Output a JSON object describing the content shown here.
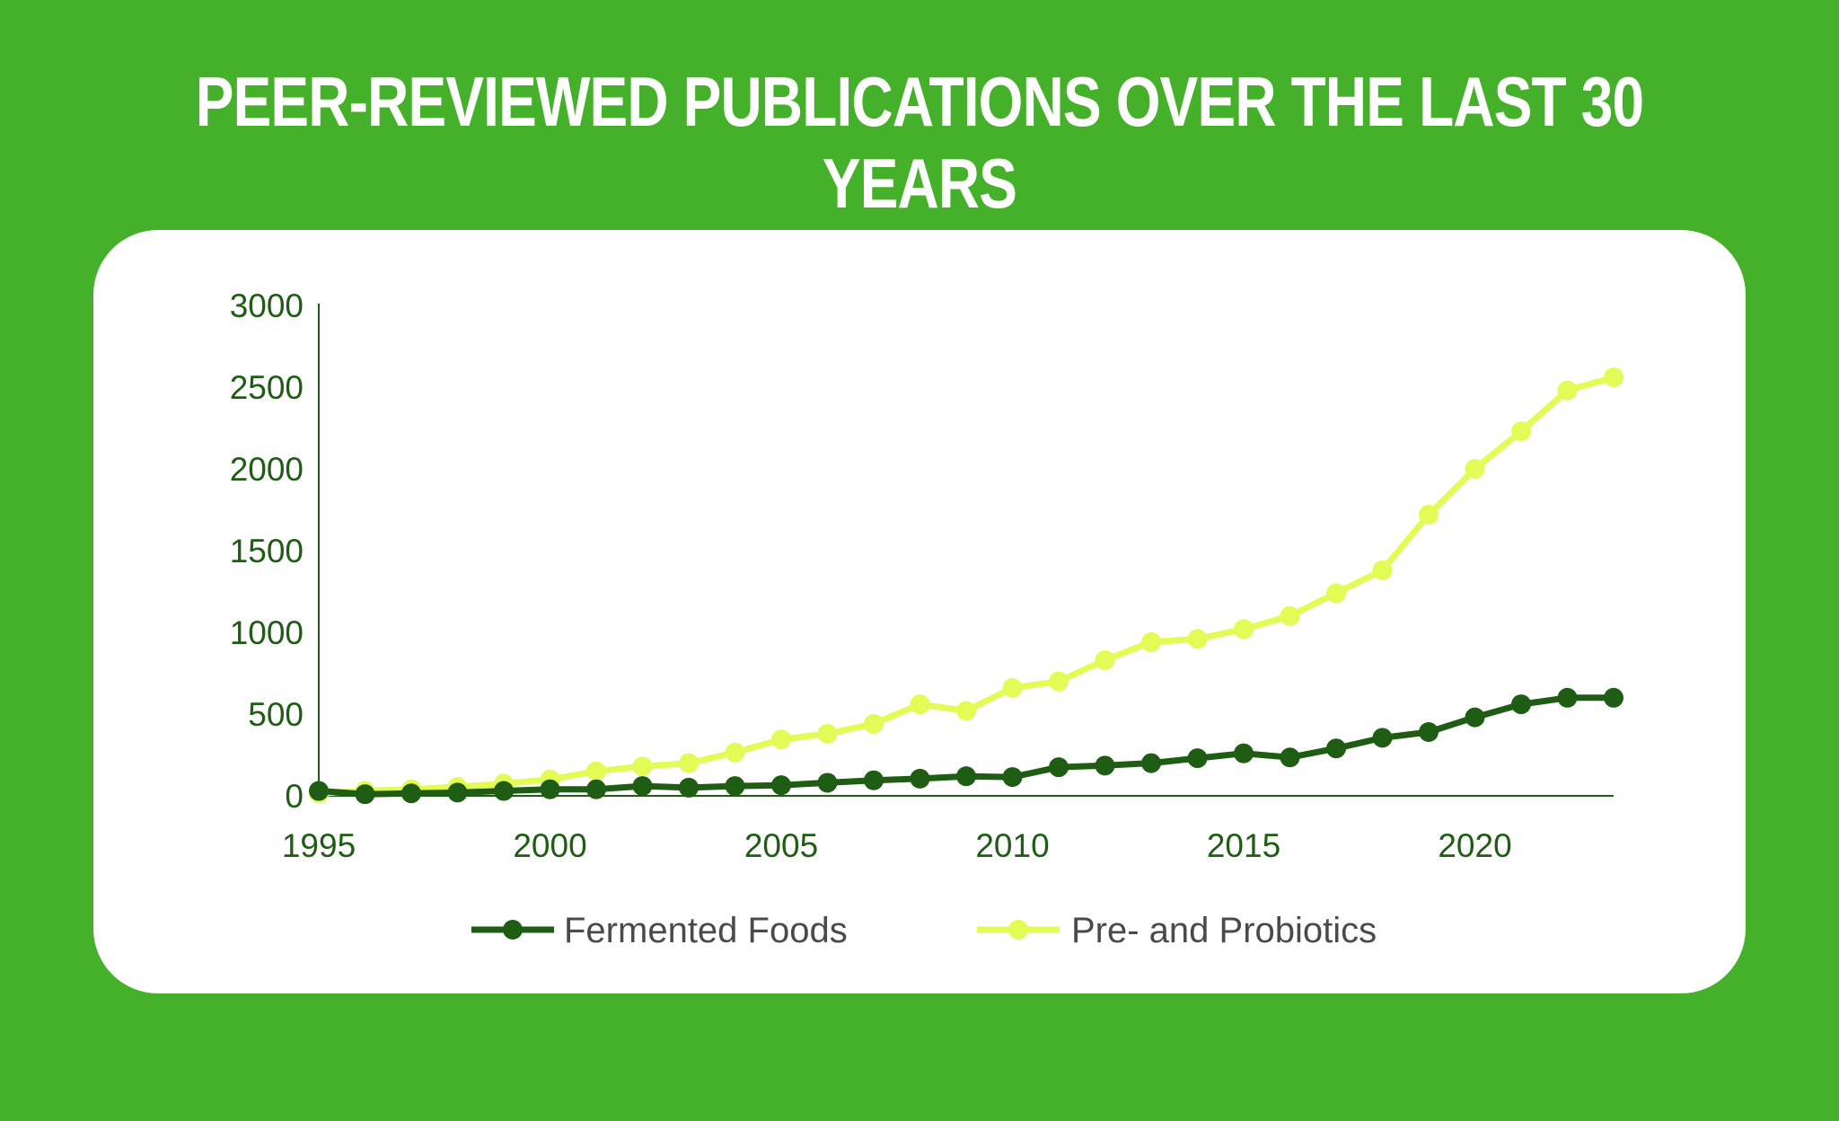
{
  "title": "PEER-REVIEWED PUBLICATIONS OVER THE LAST 30 YEARS",
  "colors": {
    "background": "#45b02a",
    "card": "#ffffff",
    "fermented": "#1f5c14",
    "probiotics": "#e3fc55",
    "axis": "#1f5c14"
  },
  "chart_data": {
    "type": "line",
    "title": "PEER-REVIEWED PUBLICATIONS OVER THE LAST 30 YEARS",
    "xlabel": "",
    "ylabel": "",
    "xlim": [
      1995,
      2023
    ],
    "ylim": [
      0,
      3000
    ],
    "x_ticks": [
      "1995",
      "2000",
      "2005",
      "2010",
      "2015",
      "2020"
    ],
    "y_ticks": [
      "0",
      "500",
      "1000",
      "1500",
      "2000",
      "2500",
      "3000"
    ],
    "grid": false,
    "legend_position": "bottom-center",
    "x": [
      1995,
      1996,
      1997,
      1998,
      1999,
      2000,
      2001,
      2002,
      2003,
      2004,
      2005,
      2006,
      2007,
      2008,
      2009,
      2010,
      2011,
      2012,
      2013,
      2014,
      2015,
      2016,
      2017,
      2018,
      2019,
      2020,
      2021,
      2022,
      2023
    ],
    "series": [
      {
        "name": "Fermented Foods",
        "color": "#1f5c14",
        "values": [
          30,
          10,
          15,
          20,
          30,
          40,
          40,
          60,
          50,
          60,
          65,
          80,
          95,
          105,
          120,
          115,
          175,
          185,
          200,
          230,
          260,
          235,
          290,
          355,
          390,
          480,
          560,
          600,
          600
        ]
      },
      {
        "name": "Pre- and Probiotics",
        "color": "#e3fc55",
        "values": [
          15,
          30,
          40,
          55,
          75,
          100,
          150,
          180,
          200,
          265,
          345,
          380,
          440,
          560,
          520,
          660,
          700,
          830,
          940,
          960,
          1020,
          1100,
          1240,
          1380,
          1720,
          2000,
          2230,
          2480,
          2560
        ]
      }
    ]
  }
}
